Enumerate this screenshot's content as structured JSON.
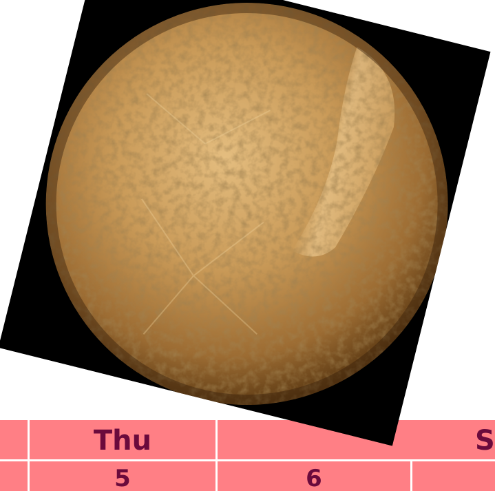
{
  "calendar": {
    "header": [
      {
        "label": ""
      },
      {
        "label": "Thu"
      },
      {
        "label": ""
      },
      {
        "label": "S"
      }
    ],
    "dates": [
      {
        "label": ""
      },
      {
        "label": "5"
      },
      {
        "label": "6"
      },
      {
        "label": ""
      }
    ]
  },
  "photo": {
    "subject_icon": "planet-mercury-image",
    "colors": {
      "background": "#000000",
      "planet_light": "#d9ad6c",
      "planet_mid": "#b98747",
      "planet_dark": "#5e3b14"
    }
  },
  "calendar_colors": {
    "row_background": "#ff7f85",
    "text": "#6a0a3c"
  }
}
